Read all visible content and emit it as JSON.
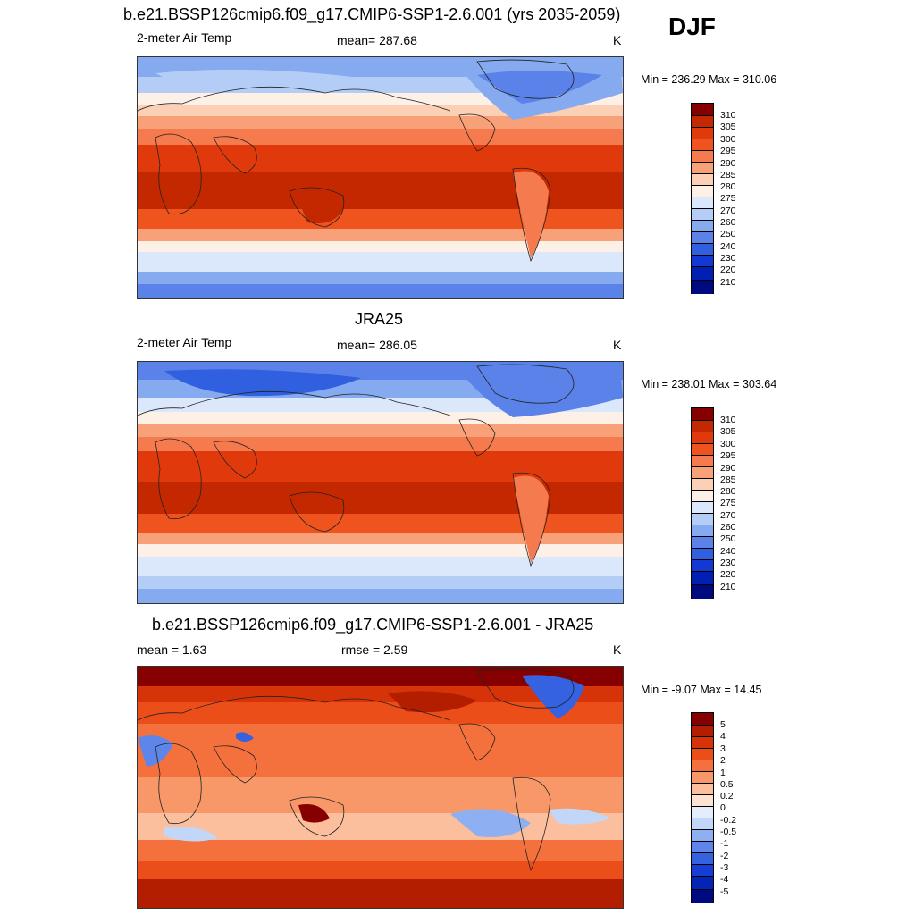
{
  "season": "DJF",
  "panels": [
    {
      "title": "b.e21.BSSP126cmip6.f09_g17.CMIP6-SSP1-2.6.001 (yrs 2035-2059)",
      "left_label": "2-meter Air Temp",
      "center_label": "mean= 287.68",
      "unit": "K",
      "minmax": "Min = 236.29 Max = 310.06",
      "colorbar": {
        "levels": [
          "310",
          "305",
          "300",
          "295",
          "290",
          "285",
          "280",
          "275",
          "270",
          "260",
          "250",
          "240",
          "230",
          "220",
          "210"
        ],
        "colors": [
          "#870000",
          "#c42800",
          "#e03a0c",
          "#f0541e",
          "#f57a4e",
          "#f8a078",
          "#fcd0b4",
          "#fdf0e6",
          "#dbe8fb",
          "#b4cdf6",
          "#86aaf0",
          "#5a82e8",
          "#3060e0",
          "#1438d2",
          "#0020b4",
          "#000a80"
        ]
      }
    },
    {
      "title": "JRA25",
      "left_label": "2-meter Air Temp",
      "center_label": "mean= 286.05",
      "unit": "K",
      "minmax": "Min = 238.01 Max = 303.64",
      "colorbar": {
        "levels": [
          "310",
          "305",
          "300",
          "295",
          "290",
          "285",
          "280",
          "275",
          "270",
          "260",
          "250",
          "240",
          "230",
          "220",
          "210"
        ],
        "colors": [
          "#870000",
          "#c42800",
          "#e03a0c",
          "#f0541e",
          "#f57a4e",
          "#f8a078",
          "#fcd0b4",
          "#fdf0e6",
          "#dbe8fb",
          "#b4cdf6",
          "#86aaf0",
          "#5a82e8",
          "#3060e0",
          "#1438d2",
          "#0020b4",
          "#000a80"
        ]
      }
    },
    {
      "title": "b.e21.BSSP126cmip6.f09_g17.CMIP6-SSP1-2.6.001 - JRA25",
      "left_label": "mean =   1.63",
      "center_label": "rmse =   2.59",
      "unit": "K",
      "minmax": "Min =  -9.07 Max =  14.45",
      "colorbar": {
        "levels": [
          "5",
          "4",
          "3",
          "2",
          "1",
          "0.5",
          "0.2",
          "0",
          "-0.2",
          "-0.5",
          "-1",
          "-2",
          "-3",
          "-4",
          "-5"
        ],
        "colors": [
          "#870000",
          "#b41e00",
          "#d63408",
          "#ec4e1a",
          "#f4703c",
          "#f89868",
          "#fbbf9e",
          "#fde2d2",
          "#e4edfc",
          "#c2d6f8",
          "#8eb0f2",
          "#5e86ea",
          "#3462e0",
          "#163ed4",
          "#0424b8",
          "#000a80"
        ]
      }
    }
  ]
}
